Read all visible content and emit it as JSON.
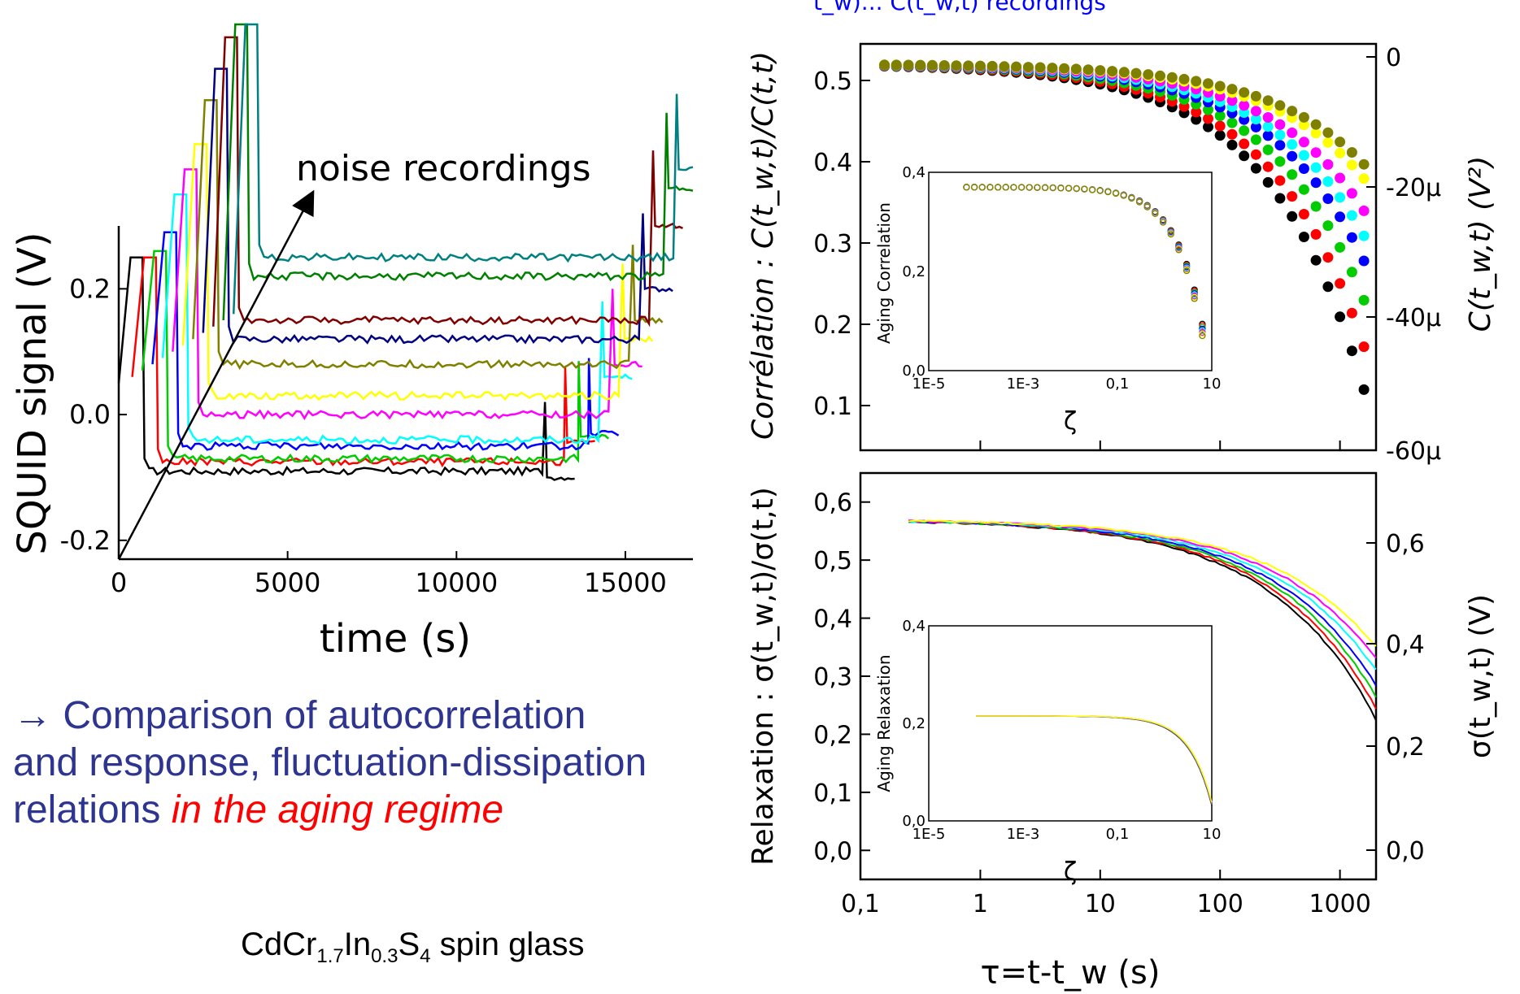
{
  "top_fragment": "t_w)... C(t_w,t) recordings",
  "note": {
    "arrow": "→",
    "line1": " Comparison of autocorrelation",
    "line2": "and response, fluctuation-dissipation",
    "line3a": "relations ",
    "line3b": "in the aging regime"
  },
  "formula": {
    "a": "CdCr",
    "b": "1.7",
    "c": "In",
    "d": "0.3",
    "e": "S",
    "f": "4",
    "g": " spin glass"
  },
  "colors": [
    "#000000",
    "#ff0000",
    "#00cc00",
    "#0000ff",
    "#00ffff",
    "#ff00ff",
    "#ffff00",
    "#808000",
    "#000080",
    "#800000",
    "#008000",
    "#008080"
  ],
  "chart_data": [
    {
      "type": "line",
      "name_key": "squid",
      "annotation": "noise recordings",
      "xlabel": "time (s)",
      "ylabel": "SQUID signal (V)",
      "xlim": [
        0,
        17000
      ],
      "ylim": [
        -0.23,
        0.3
      ],
      "xticks": [
        0,
        5000,
        10000,
        15000
      ],
      "xtick_labels": [
        "0",
        "5000",
        "10000",
        "15000"
      ],
      "yticks": [
        -0.2,
        0.0,
        0.2
      ],
      "ytick_labels": [
        "-0.2",
        "0.0",
        "0.2"
      ],
      "series": [
        {
          "t_start": 0,
          "peak": 0.25,
          "t_end": 12600,
          "plateau": -0.09,
          "end": -0.1
        },
        {
          "t_start": 400,
          "peak": 0.25,
          "t_end": 13200,
          "plateau": -0.075,
          "end": -0.045
        },
        {
          "t_start": 700,
          "peak": 0.26,
          "t_end": 13600,
          "plateau": -0.07,
          "end": -0.035
        },
        {
          "t_start": 1000,
          "peak": 0.29,
          "t_end": 13900,
          "plateau": -0.05,
          "end": -0.03
        },
        {
          "t_start": 1300,
          "peak": 0.35,
          "t_end": 14300,
          "plateau": -0.04,
          "end": 0.06
        },
        {
          "t_start": 1600,
          "peak": 0.39,
          "t_end": 14600,
          "plateau": 0.0,
          "end": 0.08
        },
        {
          "t_start": 1900,
          "peak": 0.43,
          "t_end": 14900,
          "plateau": 0.03,
          "end": 0.12
        },
        {
          "t_start": 2200,
          "peak": 0.5,
          "t_end": 15200,
          "plateau": 0.08,
          "end": 0.15
        },
        {
          "t_start": 2500,
          "peak": 0.55,
          "t_end": 15500,
          "plateau": 0.12,
          "end": 0.2
        },
        {
          "t_start": 2800,
          "peak": 0.6,
          "t_end": 15800,
          "plateau": 0.15,
          "end": 0.3
        },
        {
          "t_start": 3100,
          "peak": 0.7,
          "t_end": 16200,
          "plateau": 0.22,
          "end": 0.36
        },
        {
          "t_start": 3400,
          "peak": 0.75,
          "t_end": 16500,
          "plateau": 0.25,
          "end": 0.39
        }
      ]
    },
    {
      "type": "scatter",
      "name_key": "corr",
      "ylabel_left": "Corrélation : C(t_w,t)/C(t,t)",
      "ylabel_right": "C(t_w,t) (V²)",
      "xscale": "log",
      "xlim": [
        0.1,
        2000
      ],
      "ylim_left": [
        0.045,
        0.545
      ],
      "yticks_left": [
        0.1,
        0.2,
        0.3,
        0.4,
        0.5
      ],
      "ytick_labels_left": [
        "0.1",
        "0.2",
        "0.3",
        "0.4",
        "0.5"
      ],
      "yticks_right_labels": [
        "0",
        "-20µ",
        "-40µ",
        "-60µ"
      ],
      "grid": false,
      "series_end_values": [
        0.065,
        0.125,
        0.19,
        0.245,
        0.28,
        0.315,
        0.36,
        0.38
      ],
      "inset": {
        "ylabel": "Aging Correlation",
        "xlabel": "ζ",
        "xscale": "log",
        "xlim": [
          1e-05,
          10
        ],
        "ylim": [
          0.0,
          0.4
        ],
        "xtick_labels": [
          "1E-5",
          "1E-3",
          "0,1",
          "10"
        ],
        "ytick_labels": [
          "0,0",
          "0,2",
          "0,4"
        ]
      }
    },
    {
      "type": "line",
      "name_key": "relax",
      "ylabel_left": "Relaxation : σ(t_w,t)/σ(t,t)",
      "ylabel_right": "σ(t_w,t) (V)",
      "xlabel": "τ=t-t_w (s)",
      "xscale": "log",
      "xlim": [
        0.1,
        2000
      ],
      "ylim_left": [
        -0.05,
        0.65
      ],
      "yticks_left": [
        0.0,
        0.1,
        0.2,
        0.3,
        0.4,
        0.5,
        0.6
      ],
      "ytick_labels_left": [
        "0,0",
        "0,1",
        "0,2",
        "0,3",
        "0,4",
        "0,5",
        "0,6"
      ],
      "xtick_labels": [
        "0,1",
        "1",
        "10",
        "100",
        "1000"
      ],
      "yticks_right_labels": [
        "0,0",
        "0,2",
        "0,4",
        "0,6"
      ],
      "series_end_values": [
        0.225,
        0.245,
        0.265,
        0.285,
        0.31,
        0.33,
        0.35
      ],
      "inset": {
        "ylabel": "Aging Relaxation",
        "xlabel": "ζ",
        "xscale": "log",
        "xlim": [
          1e-05,
          10
        ],
        "ylim": [
          0.0,
          0.4
        ],
        "xtick_labels": [
          "1E-5",
          "1E-3",
          "0,1",
          "10"
        ],
        "ytick_labels": [
          "0,0",
          "0,2",
          "0,4"
        ]
      }
    }
  ]
}
